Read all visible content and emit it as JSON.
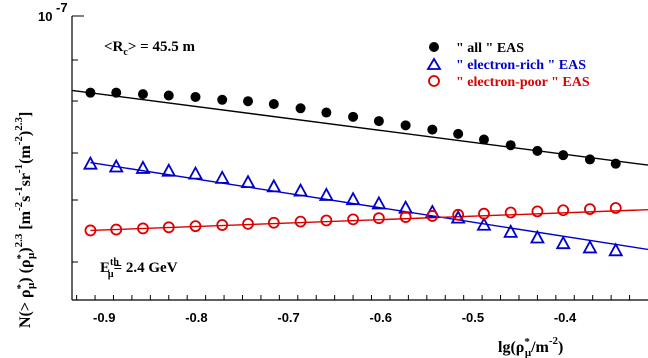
{
  "chart_data": {
    "type": "scatter",
    "xlabel": "lg(ρ*μ/m⁻²)",
    "ylabel": "N(> ρ*μ) (ρ*μ)^2.3 [m⁻² s⁻¹ sr⁻¹ (m⁻²)^2.3]",
    "x_ticks": [
      "-0.9",
      "-0.8",
      "-0.7",
      "-0.6",
      "-0.5",
      "-0.4"
    ],
    "xlim": [
      -0.935,
      -0.31
    ],
    "y_scale": "log",
    "y_tick_label": "10^-7",
    "y_exponent": "-7",
    "annotations": {
      "rc": "<Rc> = 45.5 m",
      "energy": "Eμth= 2.4 GeV"
    },
    "legend_position": "top-right",
    "legend": [
      {
        "marker": "filled-circle",
        "color": "#000000",
        "label": "\" all \" EAS"
      },
      {
        "marker": "open-triangle",
        "color": "#0000cc",
        "label": "\" electron-rich \" EAS"
      },
      {
        "marker": "open-circle",
        "color": "#dd0000",
        "label": "\" electron-poor \" EAS"
      }
    ],
    "x": [
      -0.915,
      -0.887,
      -0.858,
      -0.83,
      -0.801,
      -0.772,
      -0.744,
      -0.716,
      -0.687,
      -0.659,
      -0.63,
      -0.602,
      -0.573,
      -0.544,
      -0.516,
      -0.488,
      -0.459,
      -0.43,
      -0.402,
      -0.373,
      -0.345
    ],
    "series": [
      {
        "name": "\" all \" EAS",
        "color": "#000000",
        "marker": "filled-circle",
        "values": [
          0.73,
          0.73,
          0.725,
          0.72,
          0.715,
          0.705,
          0.7,
          0.69,
          0.675,
          0.66,
          0.645,
          0.63,
          0.615,
          0.6,
          0.585,
          0.565,
          0.545,
          0.525,
          0.51,
          0.495,
          0.48
        ],
        "fit_x": [
          -0.935,
          -0.31
        ],
        "fit_y": [
          0.738,
          0.475
        ]
      },
      {
        "name": "\" electron-rich \" EAS",
        "color": "#0000cc",
        "marker": "open-triangle",
        "values": [
          0.48,
          0.47,
          0.465,
          0.455,
          0.445,
          0.43,
          0.415,
          0.4,
          0.385,
          0.37,
          0.355,
          0.34,
          0.325,
          0.31,
          0.29,
          0.265,
          0.24,
          0.22,
          0.2,
          0.185,
          0.175
        ],
        "fit_x": [
          -0.915,
          -0.31
        ],
        "fit_y": [
          0.484,
          0.178
        ]
      },
      {
        "name": "\" electron-poor \" EAS",
        "color": "#dd0000",
        "marker": "open-circle",
        "values": [
          0.245,
          0.248,
          0.252,
          0.256,
          0.26,
          0.264,
          0.268,
          0.272,
          0.276,
          0.28,
          0.284,
          0.288,
          0.292,
          0.296,
          0.3,
          0.304,
          0.308,
          0.312,
          0.316,
          0.32,
          0.324
        ],
        "fit_x": [
          -0.915,
          -0.31
        ],
        "fit_y": [
          0.245,
          0.318
        ]
      }
    ]
  }
}
